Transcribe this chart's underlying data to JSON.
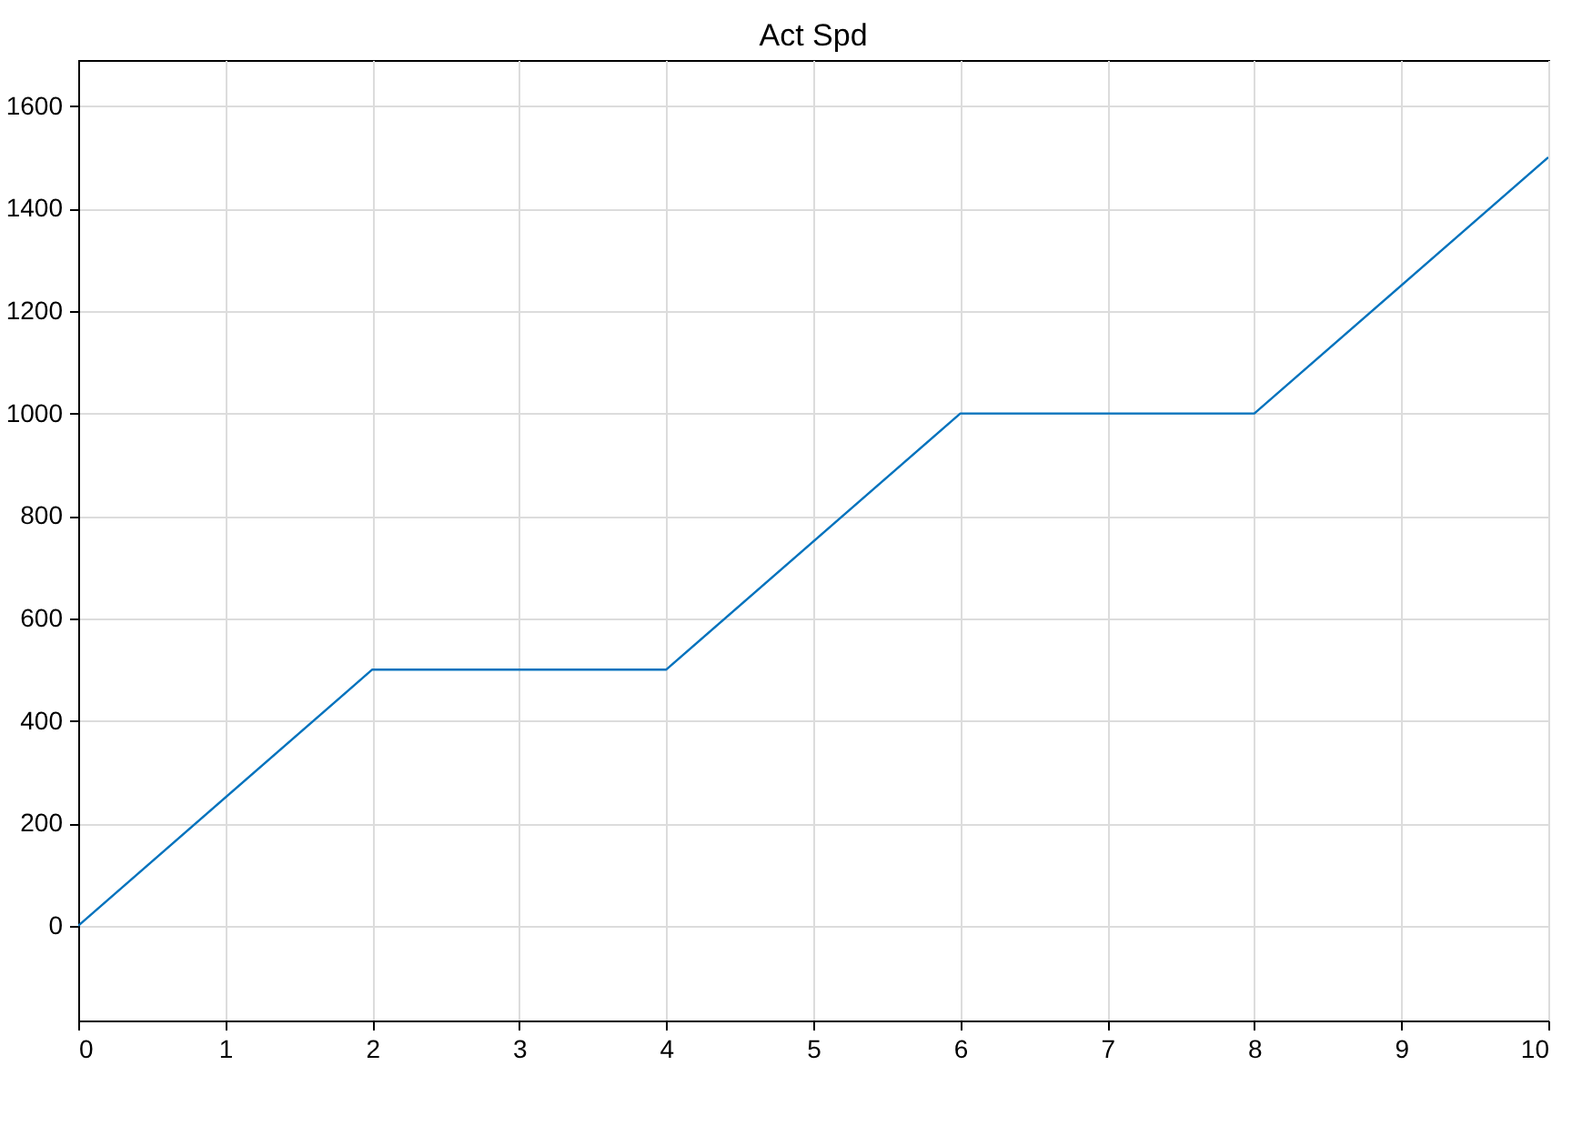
{
  "chart_data": {
    "type": "line",
    "title": "Act Spd",
    "x": [
      0,
      2,
      4,
      6,
      8,
      10
    ],
    "series": [
      {
        "color": "#0072bd",
        "values": [
          0,
          500,
          500,
          1000,
          1000,
          1500
        ]
      }
    ],
    "xlim": [
      0,
      10
    ],
    "xticks": [
      0,
      1,
      2,
      3,
      4,
      5,
      6,
      7,
      8,
      9,
      10
    ],
    "ylim": [
      -185,
      1690
    ],
    "yticks": [
      0,
      200,
      400,
      600,
      800,
      1000,
      1200,
      1400,
      1600
    ],
    "grid": true,
    "line_style": "solid",
    "marker": "none"
  }
}
